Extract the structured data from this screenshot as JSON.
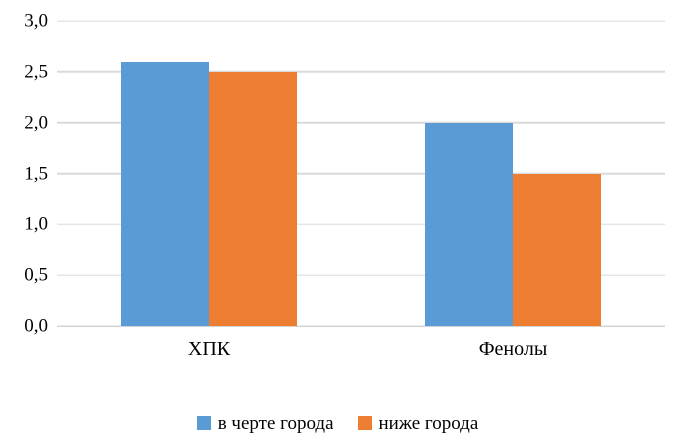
{
  "colors": {
    "background": "#ffffff",
    "text": "#000000",
    "gridline": "#d9d9d9",
    "axis": "#bfbfbf",
    "series1": "#5b9bd5",
    "series2": "#ed7d31"
  },
  "chart_data": {
    "type": "bar",
    "title": "",
    "xlabel": "",
    "ylabel": "",
    "categories": [
      "ХПК",
      "Фенолы"
    ],
    "series": [
      {
        "name": "в черте города",
        "color": "#5b9bd5",
        "values": [
          2.6,
          2.0
        ]
      },
      {
        "name": "ниже города",
        "color": "#ed7d31",
        "values": [
          2.5,
          1.5
        ]
      }
    ],
    "ylim": [
      0.0,
      3.0
    ],
    "ytick_step": 0.5,
    "ytick_labels": [
      "0,0",
      "0,5",
      "1,0",
      "1,5",
      "2,0",
      "2,5",
      "3,0"
    ],
    "decimal_separator": ",",
    "grid": true,
    "legend_position": "bottom"
  }
}
